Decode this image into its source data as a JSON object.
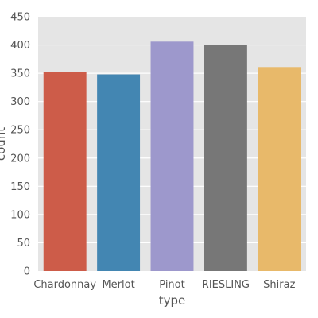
{
  "chart_data": {
    "type": "bar",
    "title": "",
    "xlabel": "type",
    "ylabel": "count",
    "categories": [
      "Chardonnay",
      "Merlot",
      "Pinot",
      "RIESLING",
      "Shiraz"
    ],
    "values": [
      352,
      348,
      406,
      400,
      361
    ],
    "ylim": [
      0,
      450
    ],
    "yticks": [
      0,
      50,
      100,
      150,
      200,
      250,
      300,
      350,
      400,
      450
    ],
    "grid": true,
    "background": "#e5e5e5",
    "colors": [
      "#cd5c49",
      "#4386b2",
      "#9d98cc",
      "#777777",
      "#e8b96a"
    ]
  }
}
